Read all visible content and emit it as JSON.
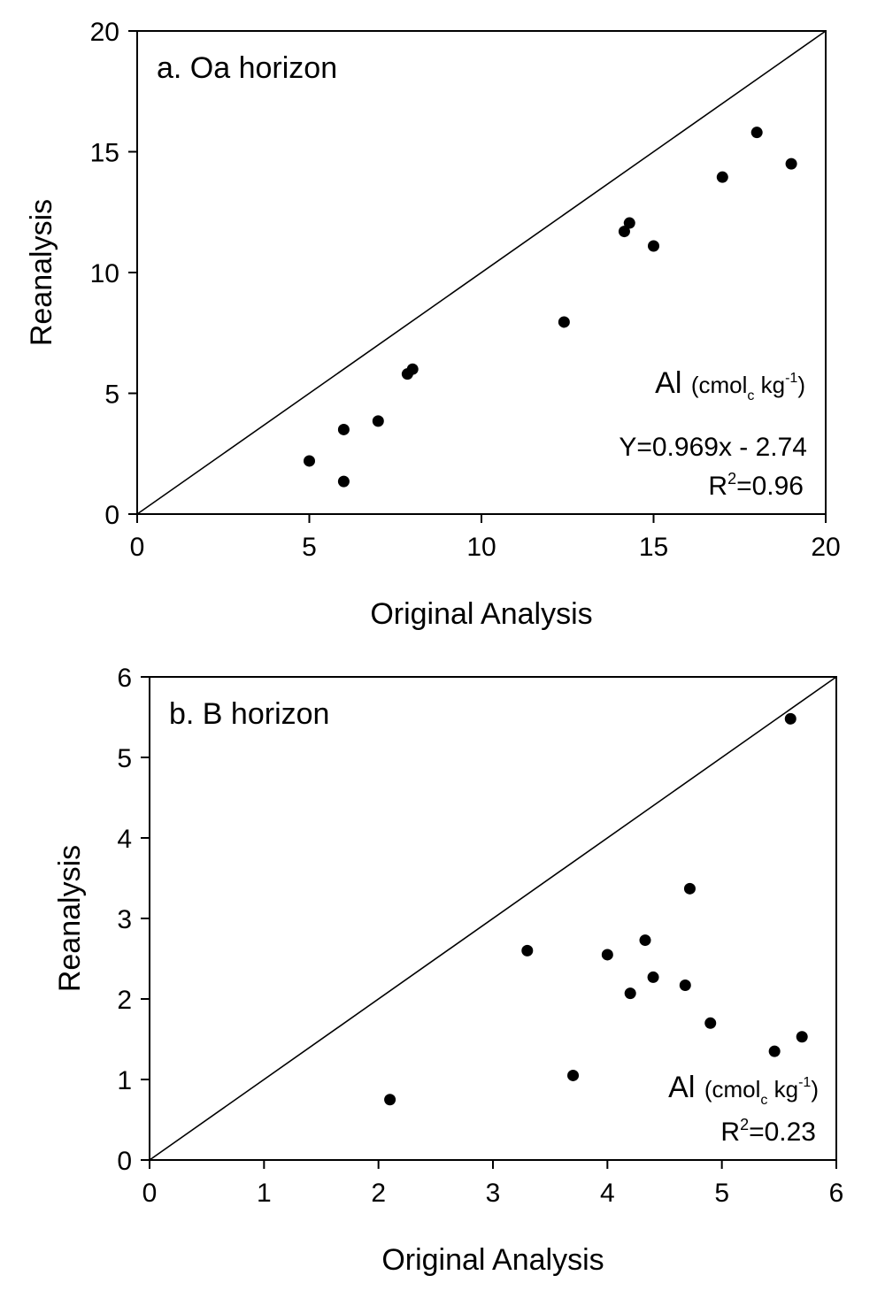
{
  "colors": {
    "background": "#ffffff",
    "ink": "#000000"
  },
  "chart_data": [
    {
      "type": "scatter",
      "title": "a. Oa horizon",
      "xlabel": "Original Analysis",
      "ylabel": "Reanalysis",
      "xlim": [
        0,
        20
      ],
      "ylim": [
        0,
        20
      ],
      "xticks": [
        "0",
        "5",
        "10",
        "15",
        "20"
      ],
      "yticks": [
        "0",
        "5",
        "10",
        "15",
        "20"
      ],
      "reference_line": "1:1",
      "annotation": {
        "element": "Al",
        "unit_open": "(cmol",
        "unit_sub": "c",
        "unit_mid": " kg",
        "unit_sup": "-1",
        "unit_close": ")",
        "equation": "Y=0.969x - 2.74",
        "r2_base": "R",
        "r2_sup": "2",
        "r2_value": "=0.96"
      },
      "series": [
        {
          "name": "Al",
          "points": [
            [
              5.0,
              2.2
            ],
            [
              6.0,
              3.5
            ],
            [
              6.0,
              1.35
            ],
            [
              7.0,
              3.85
            ],
            [
              7.85,
              5.8
            ],
            [
              8.0,
              6.0
            ],
            [
              12.4,
              7.95
            ],
            [
              14.15,
              11.7
            ],
            [
              14.3,
              12.05
            ],
            [
              15.0,
              11.1
            ],
            [
              17.0,
              13.95
            ],
            [
              18.0,
              15.8
            ],
            [
              19.0,
              14.5
            ]
          ]
        }
      ]
    },
    {
      "type": "scatter",
      "title": "b. B horizon",
      "xlabel": "Original Analysis",
      "ylabel": "Reanalysis",
      "xlim": [
        0,
        6
      ],
      "ylim": [
        0,
        6
      ],
      "xticks": [
        "0",
        "1",
        "2",
        "3",
        "4",
        "5",
        "6"
      ],
      "yticks": [
        "0",
        "1",
        "2",
        "3",
        "4",
        "5",
        "6"
      ],
      "reference_line": "1:1",
      "annotation": {
        "element": "Al",
        "unit_open": "(cmol",
        "unit_sub": "c",
        "unit_mid": " kg",
        "unit_sup": "-1",
        "unit_close": ")",
        "r2_base": "R",
        "r2_sup": "2",
        "r2_value": "=0.23"
      },
      "series": [
        {
          "name": "Al",
          "points": [
            [
              2.1,
              0.75
            ],
            [
              3.3,
              2.6
            ],
            [
              3.7,
              1.05
            ],
            [
              4.0,
              2.55
            ],
            [
              4.2,
              2.07
            ],
            [
              4.33,
              2.73
            ],
            [
              4.4,
              2.27
            ],
            [
              4.68,
              2.17
            ],
            [
              4.72,
              3.37
            ],
            [
              4.9,
              1.7
            ],
            [
              5.46,
              1.35
            ],
            [
              5.6,
              5.48
            ],
            [
              5.7,
              1.53
            ]
          ]
        }
      ]
    }
  ]
}
